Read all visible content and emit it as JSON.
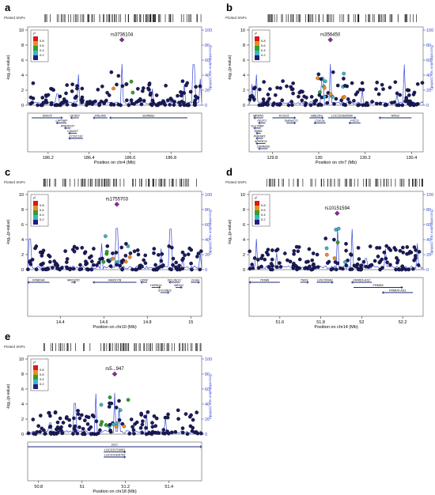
{
  "figure": {
    "background": "#ffffff"
  },
  "colors": {
    "r2_scale": [
      "#d7191c",
      "#f28b1c",
      "#33a02c",
      "#39b6c8",
      "#1f1f7a"
    ],
    "lead_snp": "#8a2a9b",
    "recombination": "#3a4bd6",
    "point_default": "#1a1a5e"
  },
  "common": {
    "plotted_snps": "Plotted SNPs",
    "ylabel_left": "-log₁₀(p-value)",
    "ylabel_right": "Recombination rate (cM/Mb)",
    "legend_title": "r²",
    "legend_values": [
      "0.8",
      "0.6",
      "0.4",
      "0.2"
    ]
  },
  "chart_data": [
    {
      "panel": "a",
      "type": "scatter",
      "lead_snp": {
        "label": "rs3736104",
        "x": 186.56,
        "y": 8.7
      },
      "xlabel": "Position on chr4 (Mb)",
      "xticks": [
        186.2,
        186.4,
        186.6,
        186.8
      ],
      "xlim": [
        186.1,
        186.95
      ],
      "ylim": [
        0,
        10
      ],
      "yticks": [
        0,
        2,
        4,
        6,
        8,
        10
      ],
      "y2lim": [
        0,
        100
      ],
      "y2ticks": [
        0,
        20,
        40,
        60,
        80,
        100
      ],
      "genes": [
        {
          "name": "SNX25",
          "start": 186.12,
          "end": 186.27,
          "row": 0,
          "dir": "+"
        },
        {
          "name": "LRP2BP",
          "start": 186.24,
          "end": 186.29,
          "row": 1,
          "dir": "-"
        },
        {
          "name": "ANKRD37",
          "start": 186.28,
          "end": 186.31,
          "row": 2,
          "dir": "-"
        },
        {
          "name": "C4orf47",
          "start": 186.3,
          "end": 186.34,
          "row": 3,
          "dir": "-"
        },
        {
          "name": "CCDC110",
          "start": 186.3,
          "end": 186.37,
          "row": 4,
          "dir": "-"
        },
        {
          "name": "UFSP2",
          "start": 186.31,
          "end": 186.35,
          "row": 0,
          "dir": "-"
        },
        {
          "name": "PDLIM3",
          "start": 186.42,
          "end": 186.49,
          "row": 0,
          "dir": "-"
        },
        {
          "name": "SORBS2",
          "start": 186.5,
          "end": 186.88,
          "row": 0,
          "dir": "-"
        }
      ]
    },
    {
      "panel": "b",
      "type": "scatter",
      "lead_snp": {
        "label": "rs356450",
        "x": 130.05,
        "y": 8.7
      },
      "xlabel": "Position on chr7 (Mb)",
      "xticks": [
        129.8,
        130,
        130.2,
        130.4
      ],
      "xlim": [
        129.7,
        130.45
      ],
      "ylim": [
        0,
        10
      ],
      "yticks": [
        0,
        2,
        4,
        6,
        8,
        10
      ],
      "y2lim": [
        0,
        100
      ],
      "y2ticks": [
        0,
        20,
        40,
        60,
        80,
        100
      ],
      "genes": [
        {
          "name": "MKRN1",
          "start": 129.72,
          "end": 129.76,
          "row": 0,
          "dir": "-"
        },
        {
          "name": "FEZF2",
          "start": 129.74,
          "end": 129.77,
          "row": 1,
          "dir": "-"
        },
        {
          "name": "SLC35B4",
          "start": 129.72,
          "end": 129.75,
          "row": 2,
          "dir": "-"
        },
        {
          "name": "MZB1",
          "start": 129.73,
          "end": 129.75,
          "row": 3,
          "dir": "-"
        },
        {
          "name": "PRKAR1",
          "start": 129.73,
          "end": 129.76,
          "row": 4,
          "dir": "-"
        },
        {
          "name": "SPIRE24",
          "start": 129.73,
          "end": 129.77,
          "row": 5,
          "dir": "-"
        },
        {
          "name": "CNNM2B",
          "start": 129.74,
          "end": 129.78,
          "row": 6,
          "dir": "-"
        },
        {
          "name": "KCSC6",
          "start": 129.8,
          "end": 129.9,
          "row": 0,
          "dir": "+"
        },
        {
          "name": "TMEM173",
          "start": 129.86,
          "end": 129.9,
          "row": 1,
          "dir": "+"
        },
        {
          "name": "UBE2D3",
          "start": 129.96,
          "end": 130.02,
          "row": 0,
          "dir": "+"
        },
        {
          "name": "CSK1A",
          "start": 129.98,
          "end": 130.03,
          "row": 1,
          "dir": "-"
        },
        {
          "name": "LOC101928596",
          "start": 130.04,
          "end": 130.16,
          "row": 0,
          "dir": "+"
        },
        {
          "name": "PSCD",
          "start": 130.13,
          "end": 130.18,
          "row": 1,
          "dir": "-"
        },
        {
          "name": "NRG2",
          "start": 130.26,
          "end": 130.4,
          "row": 0,
          "dir": "-"
        }
      ]
    },
    {
      "panel": "c",
      "type": "scatter",
      "lead_snp": {
        "label": "rs1755703",
        "x": 14.66,
        "y": 8.7
      },
      "xlabel": "Position on chr10 (Mb)",
      "xticks": [
        14.4,
        14.6,
        14.8,
        15
      ],
      "xlim": [
        14.25,
        15.05
      ],
      "ylim": [
        0,
        10
      ],
      "yticks": [
        0,
        2,
        4,
        6,
        8,
        10
      ],
      "y2lim": [
        0,
        100
      ],
      "y2ticks": [
        0,
        20,
        40,
        60,
        80,
        100
      ],
      "genes": [
        {
          "name": "FRMD4A",
          "start": 14.25,
          "end": 14.35,
          "row": 0,
          "dir": "-"
        },
        {
          "name": "MIR1265",
          "start": 14.45,
          "end": 14.47,
          "row": 0,
          "dir": "+"
        },
        {
          "name": "FAM107B",
          "start": 14.55,
          "end": 14.75,
          "row": 0,
          "dir": "-"
        },
        {
          "name": "CDNF",
          "start": 14.77,
          "end": 14.8,
          "row": 0,
          "dir": "-"
        },
        {
          "name": "HSPA14",
          "start": 14.82,
          "end": 14.86,
          "row": 1,
          "dir": "+"
        },
        {
          "name": "SUV39H2",
          "start": 14.86,
          "end": 14.9,
          "row": 2,
          "dir": "+"
        },
        {
          "name": "DCLRE1C",
          "start": 14.9,
          "end": 14.95,
          "row": 0,
          "dir": "-"
        },
        {
          "name": "MEIG1",
          "start": 14.93,
          "end": 14.96,
          "row": 1,
          "dir": "+"
        },
        {
          "name": "OLAH",
          "start": 15.0,
          "end": 15.04,
          "row": 0,
          "dir": "+"
        }
      ]
    },
    {
      "panel": "d",
      "type": "scatter",
      "lead_snp": {
        "label": "rs10151594",
        "x": 51.88,
        "y": 7.5
      },
      "xlabel": "Position on chr14 (Mb)",
      "xticks": [
        51.6,
        51.8,
        52,
        52.2
      ],
      "xlim": [
        51.45,
        52.3
      ],
      "ylim": [
        0,
        10
      ],
      "yticks": [
        0,
        2,
        4,
        6,
        8,
        10
      ],
      "y2lim": [
        0,
        100
      ],
      "y2ticks": [
        0,
        20,
        40,
        60,
        80,
        100
      ],
      "genes": [
        {
          "name": "TRIM9",
          "start": 51.45,
          "end": 51.6,
          "row": 0,
          "dir": "-"
        },
        {
          "name": "TMX1",
          "start": 51.7,
          "end": 51.74,
          "row": 0,
          "dir": "+"
        },
        {
          "name": "LINC00640",
          "start": 51.78,
          "end": 51.86,
          "row": 0,
          "dir": "+"
        },
        {
          "name": "FRMD6-AS2",
          "start": 51.95,
          "end": 52.05,
          "row": 0,
          "dir": "-"
        },
        {
          "name": "FRMD6",
          "start": 51.96,
          "end": 52.2,
          "row": 1,
          "dir": "+"
        },
        {
          "name": "FRMD6-AS1",
          "start": 52.1,
          "end": 52.25,
          "row": 2,
          "dir": "-"
        }
      ]
    },
    {
      "panel": "e",
      "type": "scatter",
      "lead_snp": {
        "label": "rs5...947",
        "x": 51.15,
        "y": 8.0
      },
      "xlabel": "Position on chr18 (Mb)",
      "xticks": [
        50.8,
        51,
        51.2,
        51.4
      ],
      "xlim": [
        50.75,
        51.55
      ],
      "ylim": [
        0,
        10
      ],
      "yticks": [
        0,
        2,
        4,
        6,
        8,
        10
      ],
      "y2lim": [
        0,
        100
      ],
      "y2ticks": [
        0,
        20,
        40,
        60,
        80,
        100
      ],
      "genes": [
        {
          "name": "DCC",
          "start": 50.75,
          "end": 51.55,
          "row": 0,
          "dir": "+"
        },
        {
          "name": "LOC102724651",
          "start": 51.1,
          "end": 51.2,
          "row": 1,
          "dir": "+"
        },
        {
          "name": "LOC101928797",
          "start": 51.1,
          "end": 51.2,
          "row": 2,
          "dir": "+"
        }
      ]
    }
  ]
}
